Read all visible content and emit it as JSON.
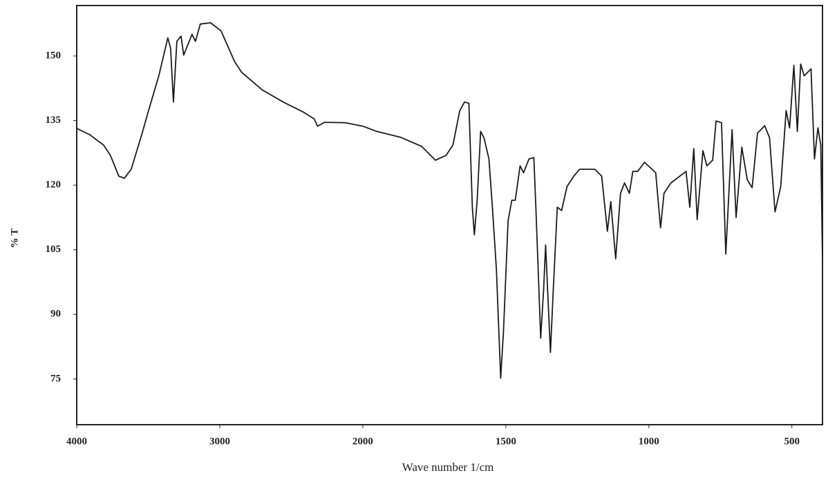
{
  "chart_data": {
    "type": "line",
    "xlabel": "Wave number 1/cm",
    "ylabel": "% T",
    "x_scale_break": 2000,
    "xlim": [
      4000,
      393
    ],
    "ylim": [
      64.4,
      161.7
    ],
    "xticks": [
      4000,
      3000,
      2000,
      1500,
      1000,
      500
    ],
    "yticks": [
      75,
      90,
      105,
      120,
      135,
      150
    ],
    "series": [
      {
        "color": "#1a1a1a",
        "x": [
          4000,
          3908,
          3812,
          3764,
          3706,
          3667,
          3619,
          3546,
          3498,
          3426,
          3363,
          3344,
          3324,
          3300,
          3271,
          3252,
          3223,
          3194,
          3170,
          3136,
          3064,
          2991,
          2895,
          2847,
          2702,
          2557,
          2412,
          2340,
          2316,
          2267,
          2123,
          2000,
          1952,
          1867,
          1794,
          1746,
          1709,
          1685,
          1661,
          1644,
          1629,
          1617,
          1610,
          1600,
          1588,
          1576,
          1559,
          1547,
          1533,
          1518,
          1508,
          1492,
          1479,
          1467,
          1450,
          1438,
          1419,
          1402,
          1395,
          1378,
          1368,
          1361,
          1354,
          1344,
          1334,
          1320,
          1305,
          1286,
          1262,
          1242,
          1189,
          1165,
          1145,
          1133,
          1116,
          1099,
          1085,
          1068,
          1056,
          1039,
          1015,
          976,
          959,
          947,
          923,
          870,
          857,
          843,
          831,
          811,
          797,
          777,
          765,
          746,
          731,
          709,
          695,
          675,
          656,
          639,
          620,
          595,
          578,
          559,
          539,
          520,
          508,
          493,
          481,
          469,
          457,
          445,
          433,
          421,
          409,
          399,
          393
        ],
        "values": [
          133.2,
          131.7,
          129.3,
          126.9,
          122.1,
          121.6,
          123.7,
          131.7,
          137.3,
          145.4,
          154.2,
          151.8,
          139.3,
          153.4,
          154.6,
          150.2,
          152.6,
          155.0,
          153.4,
          157.4,
          157.7,
          155.8,
          148.6,
          146.2,
          142.1,
          139.3,
          136.9,
          135.4,
          133.7,
          134.6,
          134.5,
          133.7,
          132.5,
          131.1,
          129.0,
          125.8,
          126.9,
          129.3,
          137.3,
          139.3,
          139.0,
          114.9,
          108.5,
          116.5,
          132.5,
          130.9,
          126.1,
          114.9,
          100.5,
          75.2,
          86.2,
          111.7,
          116.5,
          116.5,
          124.5,
          122.9,
          126.1,
          126.4,
          114.9,
          84.5,
          95.7,
          106.1,
          95.7,
          81.2,
          95.7,
          114.9,
          114.1,
          119.7,
          122.1,
          123.7,
          123.7,
          122.1,
          109.3,
          116.2,
          102.9,
          118.1,
          120.5,
          118.1,
          123.2,
          123.2,
          125.3,
          122.9,
          110.1,
          118.1,
          120.5,
          123.2,
          114.9,
          128.5,
          112.0,
          128.0,
          124.5,
          125.8,
          134.9,
          134.5,
          104.0,
          132.9,
          112.5,
          128.8,
          121.3,
          119.4,
          132.1,
          133.8,
          131.0,
          113.8,
          119.7,
          137.3,
          133.3,
          147.8,
          132.5,
          148.1,
          145.4,
          146.2,
          147.0,
          126.1,
          133.3,
          129.3,
          102.9
        ]
      }
    ]
  }
}
